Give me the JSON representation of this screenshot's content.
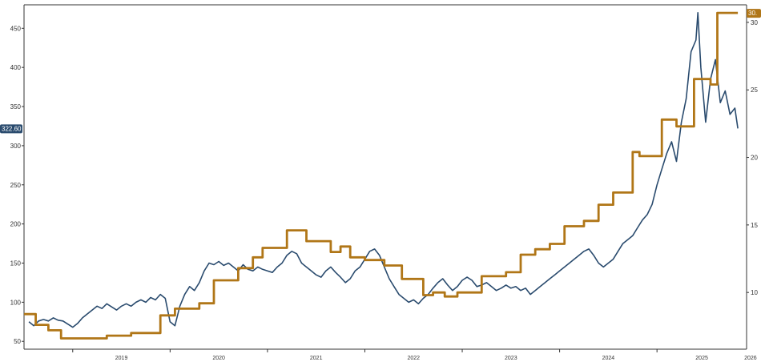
{
  "chart_data": {
    "type": "line",
    "x_labels": [
      "2019",
      "2020",
      "2021",
      "2022",
      "2023",
      "2024",
      "2025",
      "2026"
    ],
    "left_axis": {
      "ticks": [
        50,
        100,
        150,
        200,
        250,
        300,
        350,
        400,
        450
      ],
      "range": [
        40,
        480
      ]
    },
    "right_axis": {
      "ticks": [
        10,
        15,
        20,
        25,
        30
      ],
      "range": [
        5.8,
        31.3
      ]
    },
    "left_value_tag": "322.60",
    "right_value_tag": "30.",
    "colors": {
      "blue": "#2a4b6e",
      "gold": "#b07617",
      "axis": "#333333"
    },
    "series": [
      {
        "axis": "left",
        "color": "#2a4b6e",
        "points": [
          [
            2018.55,
            75
          ],
          [
            2018.6,
            70
          ],
          [
            2018.65,
            76
          ],
          [
            2018.7,
            78
          ],
          [
            2018.75,
            76
          ],
          [
            2018.8,
            80
          ],
          [
            2018.85,
            77
          ],
          [
            2018.9,
            76
          ],
          [
            2018.95,
            72
          ],
          [
            2019.0,
            68
          ],
          [
            2019.05,
            73
          ],
          [
            2019.1,
            80
          ],
          [
            2019.15,
            85
          ],
          [
            2019.2,
            90
          ],
          [
            2019.25,
            95
          ],
          [
            2019.3,
            92
          ],
          [
            2019.35,
            98
          ],
          [
            2019.4,
            94
          ],
          [
            2019.45,
            90
          ],
          [
            2019.5,
            95
          ],
          [
            2019.55,
            98
          ],
          [
            2019.6,
            95
          ],
          [
            2019.65,
            100
          ],
          [
            2019.7,
            103
          ],
          [
            2019.75,
            100
          ],
          [
            2019.8,
            106
          ],
          [
            2019.85,
            103
          ],
          [
            2019.9,
            110
          ],
          [
            2019.95,
            105
          ],
          [
            2020.0,
            75
          ],
          [
            2020.05,
            70
          ],
          [
            2020.1,
            95
          ],
          [
            2020.15,
            110
          ],
          [
            2020.2,
            120
          ],
          [
            2020.25,
            115
          ],
          [
            2020.3,
            125
          ],
          [
            2020.35,
            140
          ],
          [
            2020.4,
            150
          ],
          [
            2020.45,
            148
          ],
          [
            2020.5,
            152
          ],
          [
            2020.55,
            147
          ],
          [
            2020.6,
            150
          ],
          [
            2020.65,
            145
          ],
          [
            2020.7,
            140
          ],
          [
            2020.75,
            148
          ],
          [
            2020.8,
            142
          ],
          [
            2020.85,
            140
          ],
          [
            2020.9,
            145
          ],
          [
            2020.95,
            142
          ],
          [
            2021.0,
            140
          ],
          [
            2021.05,
            138
          ],
          [
            2021.1,
            145
          ],
          [
            2021.15,
            150
          ],
          [
            2021.2,
            160
          ],
          [
            2021.25,
            165
          ],
          [
            2021.3,
            162
          ],
          [
            2021.35,
            150
          ],
          [
            2021.4,
            145
          ],
          [
            2021.45,
            140
          ],
          [
            2021.5,
            135
          ],
          [
            2021.55,
            132
          ],
          [
            2021.6,
            140
          ],
          [
            2021.65,
            145
          ],
          [
            2021.7,
            138
          ],
          [
            2021.75,
            132
          ],
          [
            2021.8,
            125
          ],
          [
            2021.85,
            130
          ],
          [
            2021.9,
            140
          ],
          [
            2021.95,
            145
          ],
          [
            2022.0,
            155
          ],
          [
            2022.05,
            165
          ],
          [
            2022.1,
            168
          ],
          [
            2022.15,
            160
          ],
          [
            2022.2,
            145
          ],
          [
            2022.25,
            130
          ],
          [
            2022.3,
            120
          ],
          [
            2022.35,
            110
          ],
          [
            2022.4,
            105
          ],
          [
            2022.45,
            100
          ],
          [
            2022.5,
            103
          ],
          [
            2022.55,
            98
          ],
          [
            2022.6,
            105
          ],
          [
            2022.65,
            110
          ],
          [
            2022.7,
            118
          ],
          [
            2022.75,
            125
          ],
          [
            2022.8,
            130
          ],
          [
            2022.85,
            122
          ],
          [
            2022.9,
            115
          ],
          [
            2022.95,
            120
          ],
          [
            2023.0,
            128
          ],
          [
            2023.05,
            132
          ],
          [
            2023.1,
            128
          ],
          [
            2023.15,
            120
          ],
          [
            2023.2,
            122
          ],
          [
            2023.25,
            125
          ],
          [
            2023.3,
            120
          ],
          [
            2023.35,
            115
          ],
          [
            2023.4,
            118
          ],
          [
            2023.45,
            122
          ],
          [
            2023.5,
            118
          ],
          [
            2023.55,
            120
          ],
          [
            2023.6,
            115
          ],
          [
            2023.65,
            118
          ],
          [
            2023.7,
            110
          ],
          [
            2023.75,
            115
          ],
          [
            2023.8,
            120
          ],
          [
            2023.85,
            125
          ],
          [
            2023.9,
            130
          ],
          [
            2023.95,
            135
          ],
          [
            2024.0,
            140
          ],
          [
            2024.05,
            145
          ],
          [
            2024.1,
            150
          ],
          [
            2024.15,
            155
          ],
          [
            2024.2,
            160
          ],
          [
            2024.25,
            165
          ],
          [
            2024.3,
            168
          ],
          [
            2024.35,
            160
          ],
          [
            2024.4,
            150
          ],
          [
            2024.45,
            145
          ],
          [
            2024.5,
            150
          ],
          [
            2024.55,
            155
          ],
          [
            2024.6,
            165
          ],
          [
            2024.65,
            175
          ],
          [
            2024.7,
            180
          ],
          [
            2024.75,
            185
          ],
          [
            2024.8,
            195
          ],
          [
            2024.85,
            205
          ],
          [
            2024.9,
            212
          ],
          [
            2024.95,
            225
          ],
          [
            2025.0,
            250
          ],
          [
            2025.05,
            270
          ],
          [
            2025.1,
            290
          ],
          [
            2025.15,
            305
          ],
          [
            2025.2,
            280
          ],
          [
            2025.25,
            330
          ],
          [
            2025.3,
            360
          ],
          [
            2025.35,
            420
          ],
          [
            2025.4,
            435
          ],
          [
            2025.42,
            470
          ],
          [
            2025.45,
            400
          ],
          [
            2025.5,
            330
          ],
          [
            2025.55,
            385
          ],
          [
            2025.6,
            410
          ],
          [
            2025.65,
            355
          ],
          [
            2025.7,
            370
          ],
          [
            2025.75,
            340
          ],
          [
            2025.8,
            348
          ],
          [
            2025.83,
            322
          ]
        ]
      },
      {
        "axis": "right",
        "color": "#b07617",
        "points": [
          [
            2018.5,
            8.4
          ],
          [
            2018.62,
            8.4
          ],
          [
            2018.62,
            7.6
          ],
          [
            2018.75,
            7.6
          ],
          [
            2018.75,
            7.2
          ],
          [
            2018.88,
            7.2
          ],
          [
            2018.88,
            6.6
          ],
          [
            2019.35,
            6.6
          ],
          [
            2019.35,
            6.8
          ],
          [
            2019.6,
            6.8
          ],
          [
            2019.6,
            7.0
          ],
          [
            2019.9,
            7.0
          ],
          [
            2019.9,
            8.3
          ],
          [
            2020.05,
            8.3
          ],
          [
            2020.05,
            8.8
          ],
          [
            2020.3,
            8.8
          ],
          [
            2020.3,
            9.2
          ],
          [
            2020.45,
            9.2
          ],
          [
            2020.45,
            10.9
          ],
          [
            2020.7,
            10.9
          ],
          [
            2020.7,
            11.8
          ],
          [
            2020.85,
            11.8
          ],
          [
            2020.85,
            12.6
          ],
          [
            2020.95,
            12.6
          ],
          [
            2020.95,
            13.3
          ],
          [
            2021.2,
            13.3
          ],
          [
            2021.2,
            14.6
          ],
          [
            2021.4,
            14.6
          ],
          [
            2021.4,
            13.8
          ],
          [
            2021.65,
            13.8
          ],
          [
            2021.65,
            13.0
          ],
          [
            2021.75,
            13.0
          ],
          [
            2021.75,
            13.4
          ],
          [
            2021.85,
            13.4
          ],
          [
            2021.85,
            12.6
          ],
          [
            2022.0,
            12.6
          ],
          [
            2022.0,
            12.4
          ],
          [
            2022.2,
            12.4
          ],
          [
            2022.2,
            12.0
          ],
          [
            2022.38,
            12.0
          ],
          [
            2022.38,
            11.0
          ],
          [
            2022.6,
            11.0
          ],
          [
            2022.6,
            9.8
          ],
          [
            2022.7,
            9.8
          ],
          [
            2022.7,
            10.0
          ],
          [
            2022.82,
            10.0
          ],
          [
            2022.82,
            9.7
          ],
          [
            2022.95,
            9.7
          ],
          [
            2022.95,
            10.0
          ],
          [
            2023.2,
            10.0
          ],
          [
            2023.2,
            11.2
          ],
          [
            2023.45,
            11.2
          ],
          [
            2023.45,
            11.5
          ],
          [
            2023.6,
            11.5
          ],
          [
            2023.6,
            12.8
          ],
          [
            2023.75,
            12.8
          ],
          [
            2023.75,
            13.2
          ],
          [
            2023.9,
            13.2
          ],
          [
            2023.9,
            13.6
          ],
          [
            2024.05,
            13.6
          ],
          [
            2024.05,
            14.9
          ],
          [
            2024.25,
            14.9
          ],
          [
            2024.25,
            15.3
          ],
          [
            2024.4,
            15.3
          ],
          [
            2024.4,
            16.5
          ],
          [
            2024.55,
            16.5
          ],
          [
            2024.55,
            17.4
          ],
          [
            2024.75,
            17.4
          ],
          [
            2024.75,
            20.4
          ],
          [
            2024.82,
            20.4
          ],
          [
            2024.82,
            20.1
          ],
          [
            2025.05,
            20.1
          ],
          [
            2025.05,
            22.8
          ],
          [
            2025.2,
            22.8
          ],
          [
            2025.2,
            22.3
          ],
          [
            2025.38,
            22.3
          ],
          [
            2025.38,
            25.8
          ],
          [
            2025.55,
            25.8
          ],
          [
            2025.55,
            25.4
          ],
          [
            2025.62,
            25.4
          ],
          [
            2025.62,
            30.7
          ],
          [
            2025.83,
            30.7
          ]
        ]
      }
    ]
  }
}
